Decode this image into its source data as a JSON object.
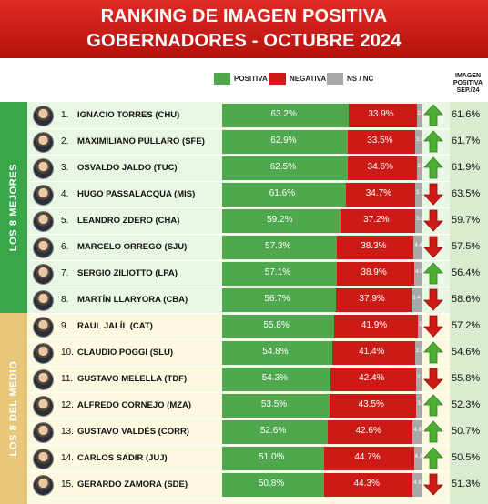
{
  "header": {
    "title_line1": "RANKING DE IMAGEN POSITIVA",
    "title_line2": "GOBERNADORES - OCTUBRE 2024"
  },
  "legend": {
    "positive": "POSITIVA",
    "negative": "NEGATIVA",
    "nsnc": "NS / NC"
  },
  "prev_header": [
    "IMAGEN",
    "POSITIVA",
    "SEP./24"
  ],
  "groups": [
    "LOS 8 MEJORES",
    "LOS 8 DEL MEDIO"
  ],
  "colors": {
    "positive": "#4fa84d",
    "negative": "#cc1b16",
    "nsnc": "#a8a8a8",
    "arrow_up": "#4caf32",
    "arrow_down": "#d01a15"
  },
  "chart_data": {
    "type": "bar",
    "stacked": true,
    "orientation": "horizontal",
    "title": "RANKING DE IMAGEN POSITIVA",
    "subtitle": "GOBERNADORES - OCTUBRE 2024",
    "categories": [
      "IGNACIO TORRES (CHU)",
      "MAXIMILIANO PULLARO (SFE)",
      "OSVALDO JALDO (TUC)",
      "HUGO PASSALACQUA (MIS)",
      "LEANDRO ZDERO (CHA)",
      "MARCELO ORREGO (SJU)",
      "SERGIO ZILIOTTO (LPA)",
      "MARTÍN LLARYORA (CBA)",
      "RAUL JALÍL (CAT)",
      "CLAUDIO POGGI (SLU)",
      "GUSTAVO MELELLA (TDF)",
      "ALFREDO CORNEJO (MZA)",
      "GUSTAVO VALDÉS (CORR)",
      "CARLOS SADIR (JUJ)",
      "GERARDO ZAMORA (SDE)"
    ],
    "ranks": [
      "1.",
      "2.",
      "3.",
      "4.",
      "5.",
      "6.",
      "7.",
      "8.",
      "9.",
      "10.",
      "11.",
      "12.",
      "13.",
      "14.",
      "15."
    ],
    "series": [
      {
        "name": "POSITIVA",
        "values": [
          63.2,
          62.9,
          62.5,
          61.6,
          59.2,
          57.3,
          57.1,
          56.7,
          55.8,
          54.8,
          54.3,
          53.5,
          52.6,
          51.0,
          50.8
        ]
      },
      {
        "name": "NEGATIVA",
        "values": [
          33.9,
          33.5,
          34.6,
          34.7,
          37.2,
          38.3,
          38.9,
          37.9,
          41.9,
          41.4,
          42.4,
          43.5,
          42.6,
          44.7,
          44.3
        ]
      },
      {
        "name": "NS / NC",
        "values": [
          2.9,
          3.6,
          2.9,
          3.7,
          3.6,
          4.4,
          4.0,
          5.4,
          2.3,
          3.8,
          3.3,
          3.0,
          4.8,
          4.3,
          4.9
        ]
      }
    ],
    "pos_labels": [
      "63.2%",
      "62.9%",
      "62.5%",
      "61.6%",
      "59.2%",
      "57.3%",
      "57.1%",
      "56.7%",
      "55.8%",
      "54.8%",
      "54.3%",
      "53.5%",
      "52.6%",
      "51.0%",
      "50.8%"
    ],
    "neg_labels": [
      "33.9%",
      "33.5%",
      "34.6%",
      "34.7%",
      "37.2%",
      "38.3%",
      "38.9%",
      "37.9%",
      "41.9%",
      "41.4%",
      "42.4%",
      "43.5%",
      "42.6%",
      "44.7%",
      "44.3%"
    ],
    "ns_labels": [
      "2.9",
      "3.6",
      "2.9",
      "3.7",
      "3.6",
      "4.4",
      "4.0",
      "5.4",
      "2.3",
      "3.8",
      "3.3",
      "3.0",
      "4.8",
      "4.3",
      "4.9"
    ],
    "trend": [
      "up",
      "up",
      "up",
      "down",
      "down",
      "down",
      "up",
      "down",
      "down",
      "up",
      "down",
      "up",
      "up",
      "up",
      "down"
    ],
    "prev_labels": [
      "61.6%",
      "61.7%",
      "61.9%",
      "63.5%",
      "59.7%",
      "57.5%",
      "56.4%",
      "58.6%",
      "57.2%",
      "54.6%",
      "55.8%",
      "52.3%",
      "50.7%",
      "50.5%",
      "51.3%"
    ],
    "prev_values": [
      61.6,
      61.7,
      61.9,
      63.5,
      59.7,
      57.5,
      56.4,
      58.6,
      57.2,
      54.6,
      55.8,
      52.3,
      50.7,
      50.5,
      51.3
    ],
    "xlim": [
      0,
      100
    ],
    "legend_position": "top"
  }
}
